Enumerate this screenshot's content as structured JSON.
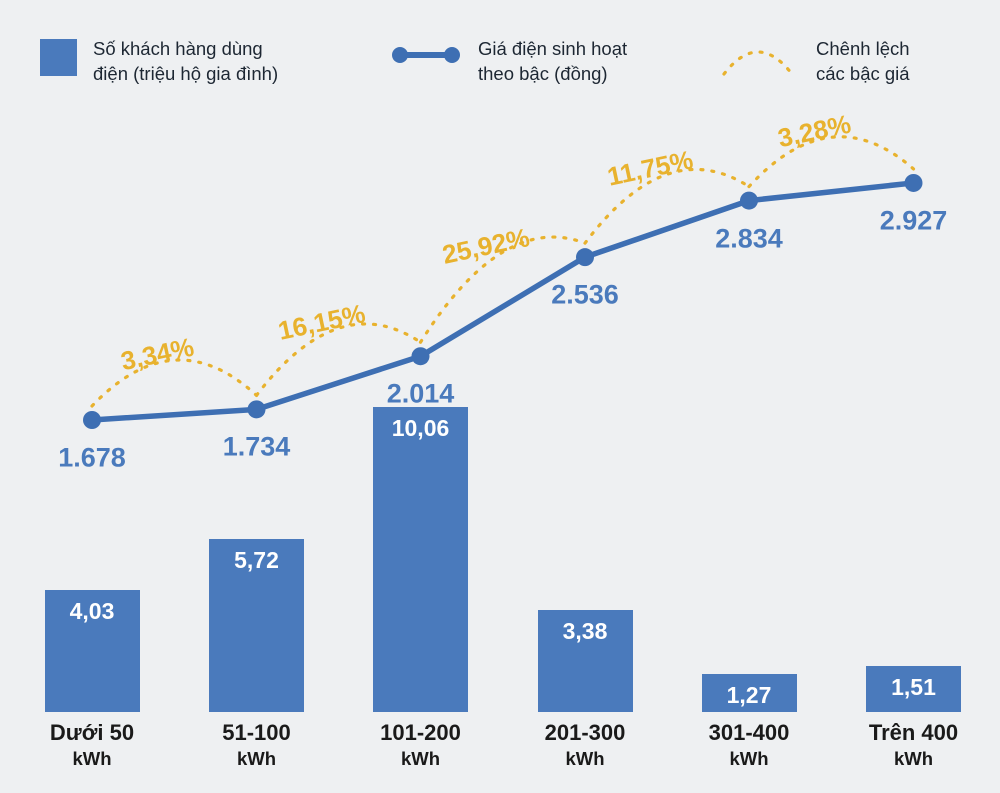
{
  "legend": {
    "customers": {
      "line1": "Số khách hàng dùng",
      "line2": "điện (triệu hộ gia đình)"
    },
    "price": {
      "line1": "Giá điện sinh hoạt",
      "line2": "theo bậc (đồng)"
    },
    "diff": {
      "line1": "Chênh lệch",
      "line2": "các bậc giá"
    }
  },
  "chart_data": {
    "type": "bar",
    "subtype": "bar+line combo with difference arcs",
    "categories": [
      {
        "range": "Dưới 50",
        "unit": "kWh"
      },
      {
        "range": "51-100",
        "unit": "kWh"
      },
      {
        "range": "101-200",
        "unit": "kWh"
      },
      {
        "range": "201-300",
        "unit": "kWh"
      },
      {
        "range": "301-400",
        "unit": "kWh"
      },
      {
        "range": "Trên 400",
        "unit": "kWh"
      }
    ],
    "series": [
      {
        "name": "Số khách hàng dùng điện (triệu hộ gia đình)",
        "type": "bar",
        "values": [
          4.03,
          5.72,
          10.06,
          3.38,
          1.27,
          1.51
        ],
        "labels": [
          "4,03",
          "5,72",
          "10,06",
          "3,38",
          "1,27",
          "1,51"
        ]
      },
      {
        "name": "Giá điện sinh hoạt theo bậc (đồng)",
        "type": "line",
        "values": [
          1678,
          1734,
          2014,
          2536,
          2834,
          2927
        ],
        "labels": [
          "1.678",
          "1.734",
          "2.014",
          "2.536",
          "2.834",
          "2.927"
        ]
      },
      {
        "name": "Chênh lệch các bậc giá",
        "type": "arc",
        "values": [
          3.34,
          16.15,
          25.92,
          11.75,
          3.28
        ],
        "labels": [
          "3,34%",
          "16,15%",
          "25,92%",
          "11,75%",
          "3,28%"
        ]
      }
    ],
    "ylim_bars": [
      0,
      10.06
    ],
    "ylim_line": [
      1678,
      2927
    ],
    "grid": false,
    "legend_position": "top",
    "colors": {
      "bar_blue": "#4a7abc",
      "line_blue": "#3e6fb3",
      "diff_yellow": "#e8b22e",
      "background": "#eef0f2",
      "bar_value_text": "#ffffff",
      "category_text": "#1a1a1a"
    }
  }
}
